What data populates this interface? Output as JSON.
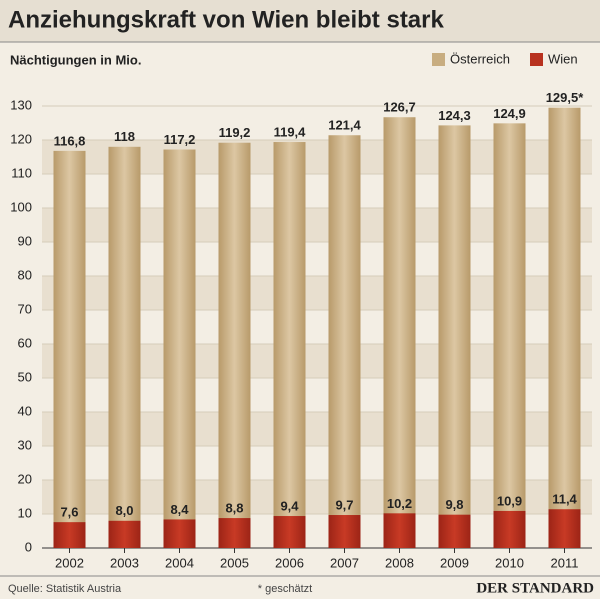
{
  "chart_data": {
    "type": "bar",
    "title": "Anziehungskraft von Wien bleibt stark",
    "subtitle": "Nächtigungen in Mio.",
    "categories": [
      "2002",
      "2003",
      "2004",
      "2005",
      "2006",
      "2007",
      "2008",
      "2009",
      "2010",
      "2011"
    ],
    "series": [
      {
        "name": "Österreich",
        "color": "#c8ad80",
        "values": [
          116.8,
          118,
          117.2,
          119.2,
          119.4,
          121.4,
          126.7,
          124.3,
          124.9,
          129.5
        ],
        "value_labels": [
          "116,8",
          "118",
          "117,2",
          "119,2",
          "119,4",
          "121,4",
          "126,7",
          "124,3",
          "124,9",
          "129,5*"
        ]
      },
      {
        "name": "Wien",
        "color": "#b8321f",
        "values": [
          7.6,
          8.0,
          8.4,
          8.8,
          9.4,
          9.7,
          10.2,
          9.8,
          10.9,
          11.4
        ],
        "value_labels": [
          "7,6",
          "8,0",
          "8,4",
          "8,8",
          "9,4",
          "9,7",
          "10,2",
          "9,8",
          "10,9",
          "11,4"
        ]
      }
    ],
    "overlap": true,
    "ylim": [
      0,
      130
    ],
    "yticks": [
      0,
      10,
      20,
      30,
      40,
      50,
      60,
      70,
      80,
      90,
      100,
      110,
      120,
      130
    ],
    "grid": true,
    "legend": "top-right",
    "source": "Quelle: Statistik Austria",
    "note": "* geschätzt",
    "brand": "DER STANDARD"
  }
}
